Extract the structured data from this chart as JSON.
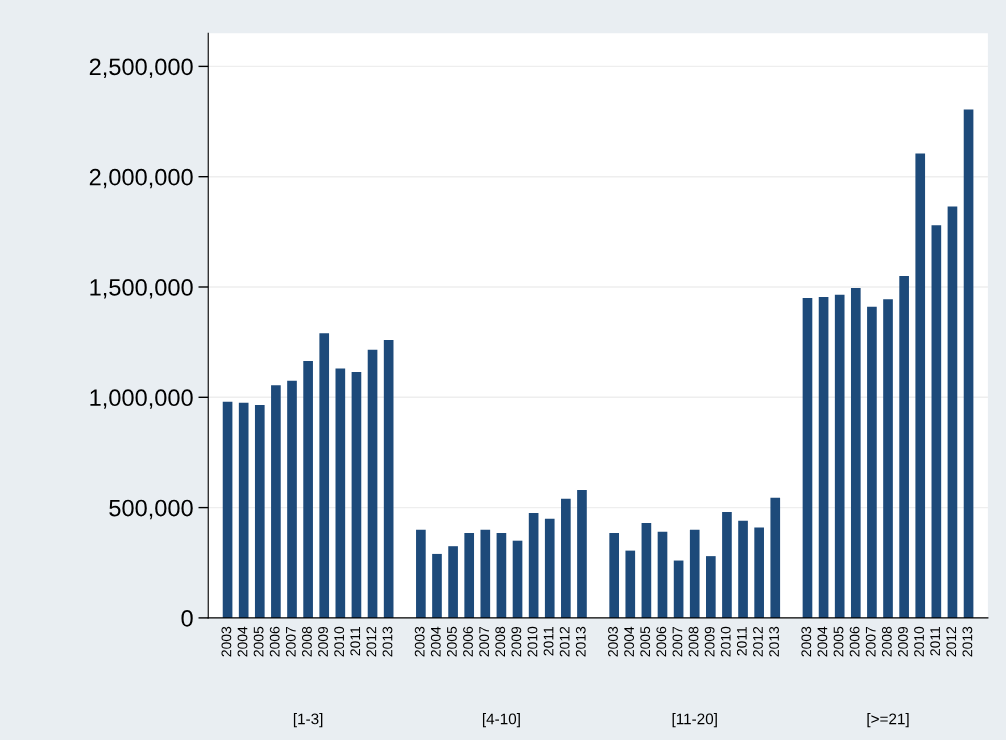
{
  "chart_data": {
    "type": "bar",
    "categories": [
      "2003",
      "2004",
      "2005",
      "2006",
      "2007",
      "2008",
      "2009",
      "2010",
      "2011",
      "2012",
      "2013",
      null,
      "2003",
      "2004",
      "2005",
      "2006",
      "2007",
      "2008",
      "2009",
      "2010",
      "2011",
      "2012",
      "2013",
      null,
      "2003",
      "2004",
      "2005",
      "2006",
      "2007",
      "2008",
      "2009",
      "2010",
      "2011",
      "2012",
      "2013",
      null,
      "2003",
      "2004",
      "2005",
      "2006",
      "2007",
      "2008",
      "2009",
      "2010",
      "2011",
      "2012",
      "2013"
    ],
    "values": [
      980000,
      975000,
      965000,
      1055000,
      1075000,
      1165000,
      1290000,
      1130000,
      1115000,
      1215000,
      1260000,
      null,
      400000,
      290000,
      325000,
      385000,
      400000,
      385000,
      350000,
      475000,
      450000,
      540000,
      580000,
      null,
      385000,
      305000,
      430000,
      390000,
      260000,
      400000,
      280000,
      480000,
      440000,
      410000,
      545000,
      null,
      1450000,
      1455000,
      1465000,
      1495000,
      1410000,
      1445000,
      1550000,
      2105000,
      1780000,
      1865000,
      2305000
    ],
    "color": "#1d4a7a",
    "ylim": [
      0,
      2650000
    ],
    "yticks": [
      {
        "value": 0,
        "label": "0"
      },
      {
        "value": 500000,
        "label": "500,000"
      },
      {
        "value": 1000000,
        "label": "1,000,000"
      },
      {
        "value": 1500000,
        "label": "1,500,000"
      },
      {
        "value": 2000000,
        "label": "2,000,000"
      },
      {
        "value": 2500000,
        "label": "2,500,000"
      }
    ],
    "grid": "y",
    "annotations": [
      "[1-3]",
      "[4-10]",
      "[11-20]",
      "[>=21]"
    ]
  }
}
